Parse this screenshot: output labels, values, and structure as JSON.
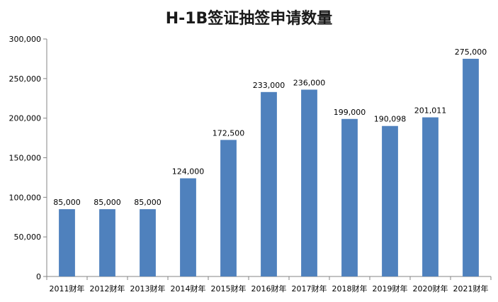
{
  "chart_data": {
    "type": "bar",
    "title": "H-1B签证抽签申请数量",
    "xlabel": "",
    "ylabel": "",
    "categories": [
      "2011财年",
      "2012财年",
      "2013财年",
      "2014财年",
      "2015财年",
      "2016财年",
      "2017财年",
      "2018财年",
      "2019财年",
      "2020财年",
      "2021财年"
    ],
    "values": [
      85000,
      85000,
      85000,
      124000,
      172500,
      233000,
      236000,
      199000,
      190098,
      201011,
      275000
    ],
    "data_labels": [
      "85,000",
      "85,000",
      "85,000",
      "124,000",
      "172,500",
      "233,000",
      "236,000",
      "199,000",
      "190,098",
      "201,011",
      "275,000"
    ],
    "ylim": [
      0,
      300000
    ],
    "yticks": [
      0,
      50000,
      100000,
      150000,
      200000,
      250000,
      300000
    ],
    "ytick_labels": [
      "0",
      "50,000",
      "100,000",
      "150,000",
      "200,000",
      "250,000",
      "300,000"
    ],
    "grid": false,
    "legend": "none",
    "bar_color": "#4f81bd",
    "axis_color": "#868686"
  }
}
